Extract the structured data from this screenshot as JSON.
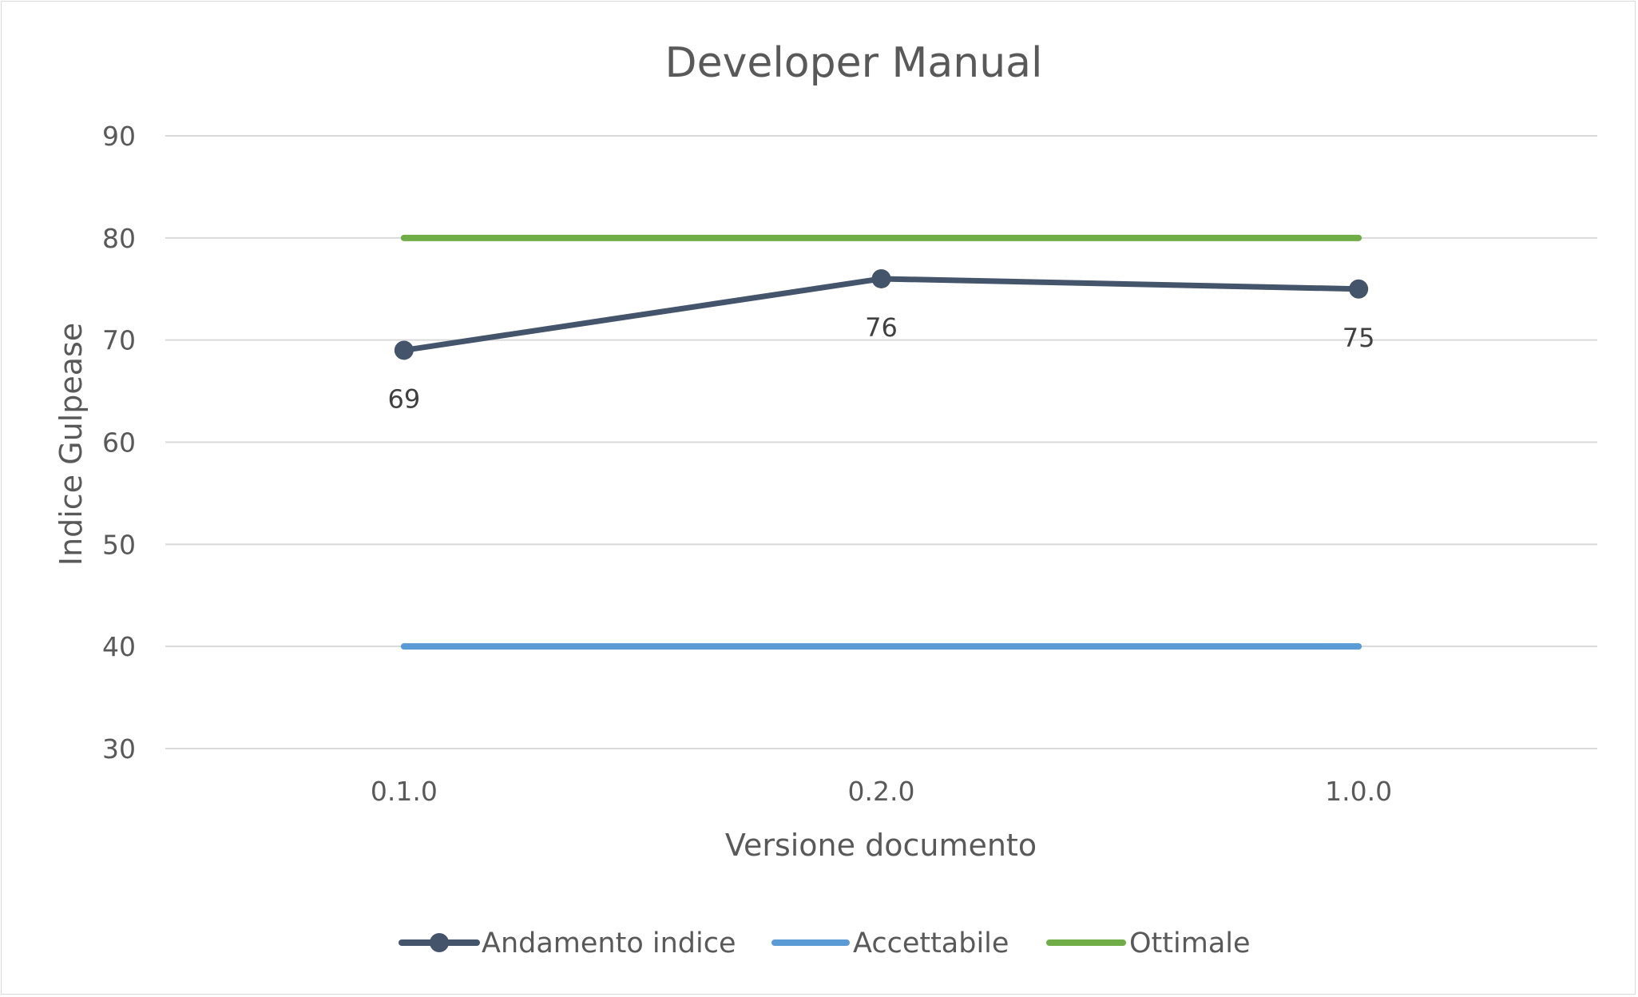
{
  "chart_data": {
    "type": "line",
    "title": "Developer Manual",
    "xlabel": "Versione documento",
    "ylabel": "Indice Gulpease",
    "categories": [
      "0.1.0",
      "0.2.0",
      "1.0.0"
    ],
    "ylim": [
      30,
      90
    ],
    "yticks": [
      30,
      40,
      50,
      60,
      70,
      80,
      90
    ],
    "grid": true,
    "legend_position": "bottom",
    "series": [
      {
        "name": "Andamento indice",
        "values": [
          69,
          76,
          75
        ],
        "color": "#44546a",
        "markers": true,
        "data_labels": true
      },
      {
        "name": "Accettabile",
        "values": [
          40,
          40,
          40
        ],
        "color": "#5b9bd5",
        "markers": false,
        "data_labels": false
      },
      {
        "name": "Ottimale",
        "values": [
          80,
          80,
          80
        ],
        "color": "#70ad47",
        "markers": false,
        "data_labels": false
      }
    ]
  }
}
